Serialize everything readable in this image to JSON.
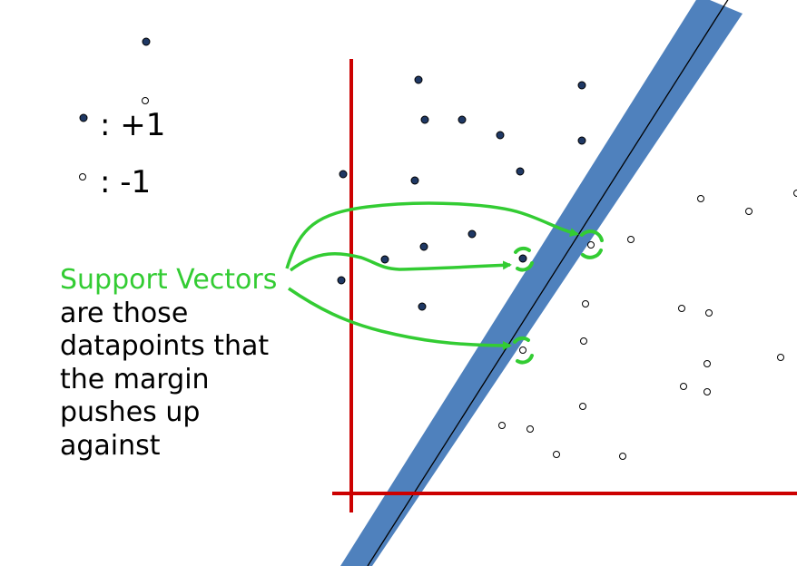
{
  "legend": {
    "positive_label": ": +1",
    "negative_label": ":  -1"
  },
  "caption": {
    "highlight": "Support Vectors",
    "line2": "are those",
    "line3": "datapoints that",
    "line4": "the margin",
    "line5": "pushes up",
    "line6": "against"
  },
  "colors": {
    "axis": "#cc0000",
    "margin_band": "#4f81bd",
    "boundary_line": "#000000",
    "positive_point": "#1f3864",
    "negative_point": "#ffffff",
    "arrows": "#33cc33",
    "highlight_text": "#33cc33"
  },
  "icons": {
    "positive_marker": "filled-dot-icon",
    "negative_marker": "hollow-dot-icon",
    "support_vector_marker": "green-bracket-circle-icon"
  }
}
